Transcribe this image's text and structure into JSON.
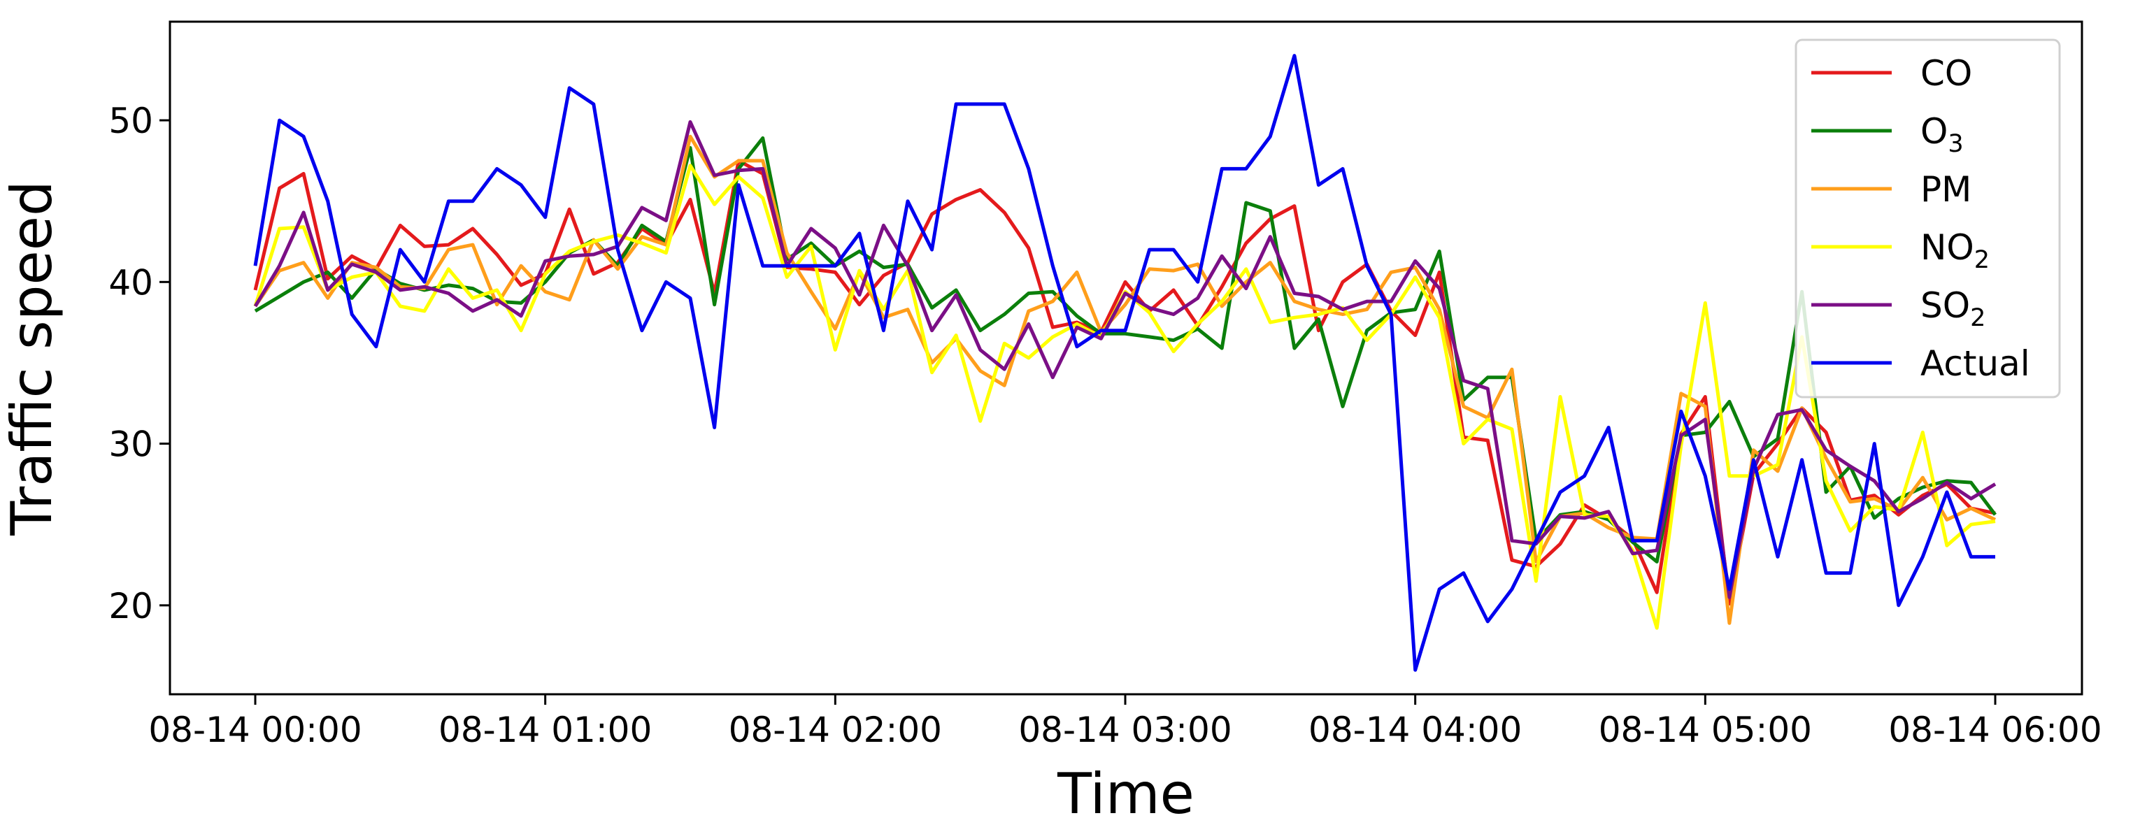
{
  "chart_data": {
    "type": "line",
    "xlabel": "Time",
    "ylabel": "Traffic speed",
    "x_range": [
      "08-14 00:00",
      "08-14 06:00"
    ],
    "ylim": [
      14.5,
      56.1
    ],
    "x_ticks": [
      {
        "time": "08-14 00:00",
        "label": "08-14 00:00"
      },
      {
        "time": "08-14 01:00",
        "label": "08-14 01:00"
      },
      {
        "time": "08-14 02:00",
        "label": "08-14 02:00"
      },
      {
        "time": "08-14 03:00",
        "label": "08-14 03:00"
      },
      {
        "time": "08-14 04:00",
        "label": "08-14 04:00"
      },
      {
        "time": "08-14 05:00",
        "label": "08-14 05:00"
      },
      {
        "time": "08-14 06:00",
        "label": "08-14 06:00"
      }
    ],
    "y_ticks": [
      {
        "value": 20,
        "label": "20"
      },
      {
        "value": 30,
        "label": "30"
      },
      {
        "value": 40,
        "label": "40"
      },
      {
        "value": 50,
        "label": "50"
      }
    ],
    "grid": false,
    "legend_position": "top-right",
    "x": [
      "08-14 00:00",
      "08-14 00:05",
      "08-14 00:10",
      "08-14 00:15",
      "08-14 00:20",
      "08-14 00:25",
      "08-14 00:30",
      "08-14 00:35",
      "08-14 00:40",
      "08-14 00:45",
      "08-14 00:50",
      "08-14 00:55",
      "08-14 01:00",
      "08-14 01:05",
      "08-14 01:10",
      "08-14 01:15",
      "08-14 01:20",
      "08-14 01:25",
      "08-14 01:30",
      "08-14 01:35",
      "08-14 01:40",
      "08-14 01:45",
      "08-14 01:50",
      "08-14 01:55",
      "08-14 02:00",
      "08-14 02:05",
      "08-14 02:10",
      "08-14 02:15",
      "08-14 02:20",
      "08-14 02:25",
      "08-14 02:30",
      "08-14 02:35",
      "08-14 02:40",
      "08-14 02:45",
      "08-14 02:50",
      "08-14 02:55",
      "08-14 03:00",
      "08-14 03:05",
      "08-14 03:10",
      "08-14 03:15",
      "08-14 03:20",
      "08-14 03:25",
      "08-14 03:30",
      "08-14 03:35",
      "08-14 03:40",
      "08-14 03:45",
      "08-14 03:50",
      "08-14 03:55",
      "08-14 04:00",
      "08-14 04:05",
      "08-14 04:10",
      "08-14 04:15",
      "08-14 04:20",
      "08-14 04:25",
      "08-14 04:30",
      "08-14 04:35",
      "08-14 04:40",
      "08-14 04:45",
      "08-14 04:50",
      "08-14 04:55",
      "08-14 05:00",
      "08-14 05:05",
      "08-14 05:10",
      "08-14 05:15",
      "08-14 05:20",
      "08-14 05:25",
      "08-14 05:30",
      "08-14 05:35",
      "08-14 05:40",
      "08-14 05:45",
      "08-14 05:50",
      "08-14 05:55",
      "08-14 06:00"
    ],
    "series": [
      {
        "name": "CO",
        "label_base": "CO",
        "label_sub": "",
        "color": "#e41a1c",
        "values": [
          39.5,
          45.8,
          46.7,
          40.2,
          41.6,
          40.8,
          43.5,
          42.2,
          42.3,
          43.3,
          41.7,
          39.8,
          40.5,
          44.5,
          40.5,
          41.2,
          43.3,
          42.3,
          45.1,
          39.3,
          47.5,
          46.7,
          40.9,
          40.8,
          40.6,
          38.6,
          40.4,
          41.2,
          44.2,
          45.1,
          45.7,
          44.3,
          42.1,
          37.2,
          37.5,
          36.9,
          40.0,
          38.2,
          39.5,
          37.3,
          39.7,
          42.4,
          43.9,
          44.7,
          37.0,
          40.0,
          41.1,
          38.2,
          36.7,
          40.6,
          30.4,
          30.2,
          22.8,
          22.4,
          23.8,
          26.2,
          25.3,
          24.1,
          20.8,
          30.6,
          32.9,
          20.1,
          28.1,
          30.0,
          32.2,
          30.7,
          26.5,
          26.8,
          25.6,
          26.8,
          27.5,
          26.0,
          25.7
        ]
      },
      {
        "name": "O3",
        "label_base": "O",
        "label_sub": "3",
        "color": "#0b7f0b",
        "values": [
          38.2,
          39.1,
          40.0,
          40.6,
          39.0,
          40.8,
          39.9,
          39.5,
          39.8,
          39.6,
          38.8,
          38.7,
          40.0,
          41.8,
          42.6,
          41.0,
          43.5,
          42.5,
          48.3,
          38.6,
          47.0,
          48.9,
          41.4,
          42.4,
          41.0,
          41.9,
          40.9,
          41.1,
          38.4,
          39.5,
          37.0,
          38.0,
          39.3,
          39.4,
          37.9,
          36.8,
          36.8,
          36.6,
          36.4,
          37.1,
          35.9,
          44.9,
          44.4,
          35.9,
          37.7,
          32.3,
          37.0,
          38.1,
          38.3,
          41.9,
          32.7,
          34.1,
          34.1,
          24.0,
          25.6,
          25.8,
          25.3,
          23.9,
          22.7,
          30.5,
          30.7,
          32.6,
          29.2,
          30.3,
          39.4,
          27.0,
          28.6,
          25.4,
          26.6,
          27.3,
          27.7,
          27.6,
          25.6
        ]
      },
      {
        "name": "PM",
        "label_base": "PM",
        "label_sub": "",
        "color": "#ff9e1b",
        "values": [
          38.5,
          40.7,
          41.2,
          39.0,
          41.2,
          40.9,
          39.7,
          39.6,
          42.0,
          42.3,
          38.6,
          41.0,
          39.4,
          38.9,
          42.6,
          40.8,
          42.8,
          42.3,
          49.0,
          46.5,
          47.5,
          47.5,
          41.8,
          39.4,
          37.1,
          40.6,
          37.8,
          38.3,
          35.0,
          36.5,
          34.5,
          33.6,
          38.2,
          38.8,
          40.6,
          36.9,
          38.6,
          40.8,
          40.7,
          41.1,
          38.5,
          40.0,
          41.2,
          38.8,
          38.3,
          38.0,
          38.3,
          40.6,
          40.9,
          38.3,
          32.3,
          31.6,
          34.6,
          22.7,
          25.5,
          25.7,
          24.8,
          24.2,
          24.1,
          33.1,
          32.3,
          18.9,
          29.6,
          28.3,
          32.2,
          29.1,
          26.4,
          26.6,
          25.9,
          27.9,
          25.3,
          26.0,
          25.3
        ]
      },
      {
        "name": "NO2",
        "label_base": "NO",
        "label_sub": "2",
        "color": "#ffff00",
        "values": [
          38.5,
          43.3,
          43.4,
          39.5,
          40.3,
          40.6,
          38.5,
          38.2,
          40.8,
          39.0,
          39.5,
          37.0,
          40.5,
          41.9,
          42.5,
          42.9,
          42.4,
          41.8,
          47.2,
          44.8,
          46.5,
          45.2,
          40.3,
          42.2,
          35.8,
          40.7,
          38.3,
          40.7,
          34.4,
          36.7,
          31.4,
          36.2,
          35.3,
          36.6,
          37.4,
          36.6,
          39.4,
          38.1,
          35.7,
          37.4,
          38.8,
          40.8,
          37.5,
          37.8,
          38.0,
          38.4,
          36.4,
          38.0,
          40.3,
          37.8,
          30.0,
          31.5,
          30.9,
          21.5,
          32.9,
          25.6,
          25.5,
          23.4,
          18.6,
          29.9,
          38.7,
          28.0,
          28.0,
          28.7,
          36.6,
          27.7,
          24.6,
          26.1,
          25.9,
          30.7,
          23.7,
          25.0,
          25.2
        ]
      },
      {
        "name": "SO2",
        "label_base": "SO",
        "label_sub": "2",
        "color": "#7b0f86",
        "values": [
          38.5,
          41.0,
          44.3,
          39.5,
          41.1,
          40.6,
          39.5,
          39.7,
          39.3,
          38.2,
          38.9,
          37.9,
          41.3,
          41.6,
          41.7,
          42.2,
          44.6,
          43.8,
          49.9,
          46.6,
          46.9,
          47.0,
          41.0,
          43.3,
          42.1,
          39.2,
          43.5,
          41.0,
          37.0,
          39.2,
          35.8,
          34.6,
          37.4,
          34.1,
          37.2,
          36.5,
          39.3,
          38.4,
          38.0,
          39.0,
          41.6,
          39.6,
          42.8,
          39.3,
          39.1,
          38.3,
          38.8,
          38.8,
          41.3,
          39.6,
          33.9,
          33.4,
          24.0,
          23.8,
          25.5,
          25.4,
          25.8,
          23.2,
          23.4,
          30.5,
          31.5,
          20.5,
          28.4,
          31.8,
          32.1,
          29.6,
          28.6,
          27.7,
          25.8,
          26.6,
          27.6,
          26.6,
          27.5
        ]
      },
      {
        "name": "Actual",
        "label_base": "Actual",
        "label_sub": "",
        "color": "#0000ee",
        "values": [
          41,
          50,
          49,
          45,
          38,
          36,
          42,
          40,
          45,
          45,
          47,
          46,
          44,
          52,
          51,
          42,
          37,
          40,
          39,
          31,
          46,
          41,
          41,
          41,
          41,
          43,
          37,
          45,
          42,
          51,
          51,
          51,
          47,
          41,
          36,
          37,
          37,
          42,
          42,
          40,
          47,
          47,
          49,
          54,
          46,
          47,
          41,
          38,
          16,
          21,
          22,
          19,
          21,
          24,
          27,
          28,
          31,
          24,
          24,
          32,
          28,
          21,
          29,
          23,
          29,
          22,
          22,
          30,
          20,
          23,
          27,
          23,
          23
        ]
      }
    ]
  }
}
